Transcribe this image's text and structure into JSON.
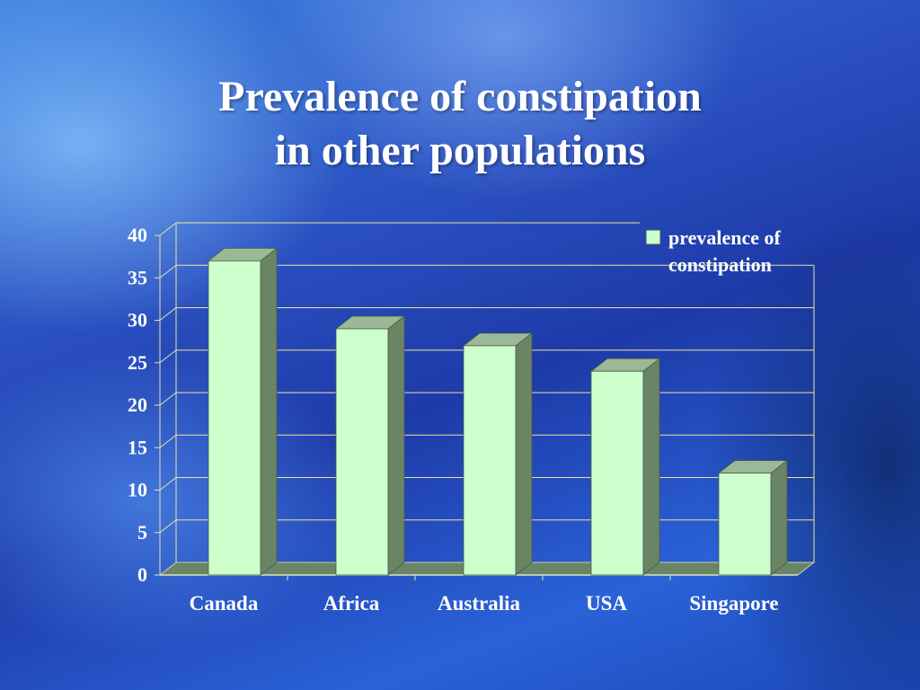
{
  "title": {
    "line1": "Prevalence of constipation",
    "line2": "in other populations"
  },
  "chart_data": {
    "type": "bar",
    "style": "3d",
    "categories": [
      "Canada",
      "Africa",
      "Australia",
      "USA",
      "Singapore"
    ],
    "series": [
      {
        "name": "prevalence of constipation",
        "values": [
          37,
          29,
          27,
          24,
          12
        ]
      }
    ],
    "ylim": [
      0,
      40
    ],
    "yticks": [
      0,
      5,
      10,
      15,
      20,
      25,
      30,
      35,
      40
    ],
    "grid": true,
    "legend": {
      "position": "top-right",
      "lines": [
        "prevalence of",
        "constipation"
      ]
    },
    "colors": {
      "bar_front": "#ccffcc",
      "bar_side": "#6a8466",
      "bar_top": "#9cb894",
      "floor": "#6a8466",
      "grid": "#e6e6a0",
      "text": "#ffffff"
    }
  }
}
